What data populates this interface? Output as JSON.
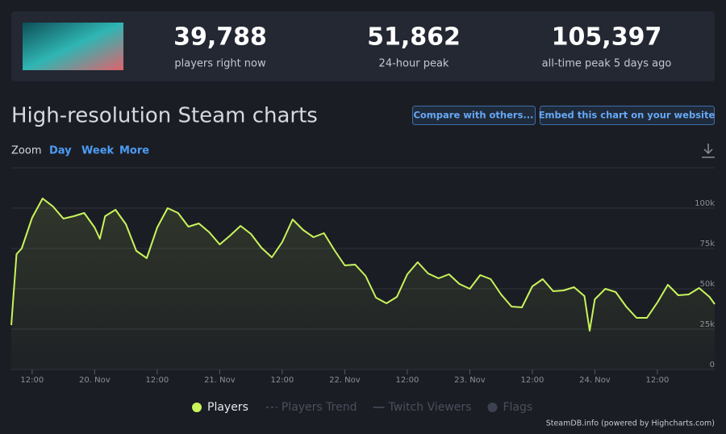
{
  "header": {
    "stats": [
      {
        "value": "39,788",
        "label": "players right now"
      },
      {
        "value": "51,862",
        "label": "24-hour peak"
      },
      {
        "value": "105,397",
        "label": "all-time peak 5 days ago"
      }
    ]
  },
  "title": "High-resolution Steam charts",
  "buttons": [
    "Compare with others...",
    "Embed this chart on your website"
  ],
  "zoom": {
    "label": "Zoom",
    "options": [
      "Day",
      "Week",
      "More"
    ]
  },
  "chart_data": {
    "type": "line",
    "x": [
      "19. Nov 08:00",
      "19. Nov 09:00",
      "19. Nov 10:00",
      "19. Nov 12:00",
      "19. Nov 14:00",
      "19. Nov 16:00",
      "19. Nov 18:00",
      "19. Nov 20:00",
      "19. Nov 22:00",
      "20. Nov 00:00",
      "20. Nov 01:00",
      "20. Nov 02:00",
      "20. Nov 04:00",
      "20. Nov 06:00",
      "20. Nov 08:00",
      "20. Nov 10:00",
      "20. Nov 12:00",
      "20. Nov 14:00",
      "20. Nov 16:00",
      "20. Nov 18:00",
      "20. Nov 20:00",
      "20. Nov 22:00",
      "21. Nov 00:00",
      "21. Nov 02:00",
      "21. Nov 04:00",
      "21. Nov 06:00",
      "21. Nov 08:00",
      "21. Nov 10:00",
      "21. Nov 12:00",
      "21. Nov 14:00",
      "21. Nov 16:00",
      "21. Nov 18:00",
      "21. Nov 20:00",
      "21. Nov 22:00",
      "22. Nov 00:00",
      "22. Nov 02:00",
      "22. Nov 04:00",
      "22. Nov 06:00",
      "22. Nov 08:00",
      "22. Nov 10:00",
      "22. Nov 12:00",
      "22. Nov 14:00",
      "22. Nov 16:00",
      "22. Nov 18:00",
      "22. Nov 20:00",
      "22. Nov 22:00",
      "23. Nov 00:00",
      "23. Nov 02:00",
      "23. Nov 04:00",
      "23. Nov 06:00",
      "23. Nov 08:00",
      "23. Nov 10:00",
      "23. Nov 12:00",
      "23. Nov 14:00",
      "23. Nov 16:00",
      "23. Nov 18:00",
      "23. Nov 20:00",
      "23. Nov 22:00",
      "23. Nov 23:00",
      "24. Nov 00:00",
      "24. Nov 02:00",
      "24. Nov 04:00",
      "24. Nov 06:00",
      "24. Nov 08:00",
      "24. Nov 10:00",
      "24. Nov 12:00",
      "24. Nov 14:00",
      "24. Nov 16:00",
      "24. Nov 18:00",
      "24. Nov 20:00",
      "24. Nov 22:00",
      "24. Nov 23:00"
    ],
    "series": [
      {
        "name": "Players",
        "color": "#c9f45b",
        "values": [
          27500,
          71500,
          75000,
          94000,
          106000,
          101000,
          93500,
          95000,
          97000,
          88000,
          81000,
          95000,
          99000,
          90000,
          73500,
          69000,
          88000,
          100000,
          97000,
          88500,
          90500,
          85000,
          77500,
          83000,
          89000,
          84000,
          75500,
          69500,
          79000,
          93000,
          86500,
          82000,
          84500,
          74000,
          64500,
          65000,
          58000,
          44500,
          41000,
          45000,
          59000,
          66500,
          59500,
          56500,
          59000,
          53000,
          50000,
          58500,
          56000,
          46500,
          39000,
          38500,
          51500,
          56000,
          48500,
          49000,
          51000,
          45500,
          24000,
          43500,
          50000,
          48000,
          39000,
          32000,
          32000,
          41500,
          52500,
          46000,
          46500,
          50500,
          45000,
          40500
        ]
      }
    ],
    "inactive_legend": [
      "Players Trend",
      "Twitch Viewers",
      "Flags"
    ],
    "xlim": [
      "19. Nov 08:00",
      "24. Nov 23:00"
    ],
    "xticks": [
      {
        "value": "19. Nov 12:00",
        "label": "12:00"
      },
      "20. Nov",
      {
        "value": "20. Nov 12:00",
        "label": "12:00"
      },
      "21. Nov",
      {
        "value": "21. Nov 12:00",
        "label": "12:00"
      },
      "22. Nov",
      {
        "value": "22. Nov 12:00",
        "label": "12:00"
      },
      "23. Nov",
      {
        "value": "23. Nov 12:00",
        "label": "12:00"
      },
      "24. Nov",
      {
        "value": "24. Nov 12:00",
        "label": "12:00"
      }
    ],
    "ylim": [
      0,
      125000
    ],
    "yticks": [
      0,
      {
        "value": 25000,
        "label": "25k"
      },
      {
        "value": 50000,
        "label": "50k"
      },
      {
        "value": 75000,
        "label": "75k"
      },
      {
        "value": 100000,
        "label": "100k"
      }
    ],
    "grid": true,
    "credit": "SteamDB.info (powered by Highcharts.com)"
  }
}
